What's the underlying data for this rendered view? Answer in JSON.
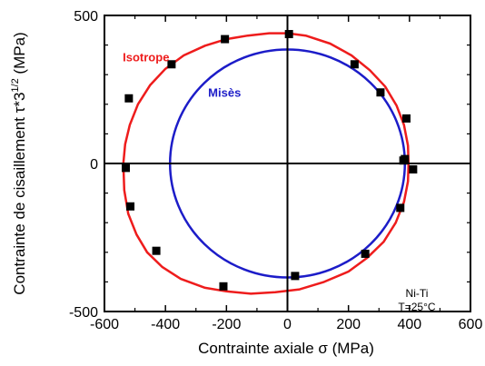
{
  "chart_data": {
    "type": "scatter",
    "title": "",
    "xlabel": "Contrainte axiale σ (MPa)",
    "ylabel_main": "Contrainte de cisaillement τ*3",
    "ylabel_sup": "1/2",
    "ylabel_unit": " (MPa)",
    "xlim": [
      -600,
      600
    ],
    "ylim": [
      -500,
      500
    ],
    "x_ticks": [
      -600,
      -400,
      -200,
      0,
      200,
      400,
      600
    ],
    "x_tick_labels": [
      "-600",
      "-400",
      "-200",
      "0",
      "200",
      "400",
      "600"
    ],
    "y_ticks": [
      -500,
      0,
      500
    ],
    "y_tick_labels": [
      "-500",
      "0",
      "500"
    ],
    "grid": false,
    "annotation_lines": [
      "Ni-Ti",
      "T=25°C"
    ],
    "series": [
      {
        "name": "Isotrope",
        "kind": "curve",
        "color": "#ee1c1c",
        "points": [
          [
            -538,
            0
          ],
          [
            -535,
            -90
          ],
          [
            -522,
            -170
          ],
          [
            -495,
            -240
          ],
          [
            -460,
            -300
          ],
          [
            -410,
            -350
          ],
          [
            -350,
            -390
          ],
          [
            -270,
            -420
          ],
          [
            -200,
            -432
          ],
          [
            -120,
            -440
          ],
          [
            -40,
            -435
          ],
          [
            40,
            -425
          ],
          [
            120,
            -400
          ],
          [
            200,
            -365
          ],
          [
            260,
            -320
          ],
          [
            315,
            -265
          ],
          [
            355,
            -200
          ],
          [
            382,
            -130
          ],
          [
            395,
            -60
          ],
          [
            397,
            0
          ],
          [
            395,
            60
          ],
          [
            382,
            130
          ],
          [
            358,
            195
          ],
          [
            320,
            260
          ],
          [
            270,
            315
          ],
          [
            210,
            365
          ],
          [
            140,
            405
          ],
          [
            60,
            432
          ],
          [
            0,
            440
          ],
          [
            -60,
            440
          ],
          [
            -130,
            432
          ],
          [
            -200,
            420
          ],
          [
            -270,
            398
          ],
          [
            -340,
            365
          ],
          [
            -400,
            320
          ],
          [
            -450,
            265
          ],
          [
            -490,
            200
          ],
          [
            -517,
            130
          ],
          [
            -532,
            65
          ],
          [
            -538,
            0
          ]
        ]
      },
      {
        "name": "Misès",
        "kind": "circle",
        "color": "#1c1cc8",
        "center": [
          0,
          0
        ],
        "radius": 385
      },
      {
        "name": "",
        "kind": "markers",
        "color": "#000000",
        "points": [
          [
            -520,
            220
          ],
          [
            -380,
            335
          ],
          [
            -205,
            420
          ],
          [
            5,
            437
          ],
          [
            220,
            335
          ],
          [
            305,
            240
          ],
          [
            390,
            152
          ],
          [
            380,
            10
          ],
          [
            412,
            -20
          ],
          [
            385,
            15
          ],
          [
            370,
            -150
          ],
          [
            255,
            -305
          ],
          [
            25,
            -380
          ],
          [
            -210,
            -415
          ],
          [
            -430,
            -295
          ],
          [
            -515,
            -145
          ],
          [
            -530,
            -15
          ]
        ]
      }
    ],
    "series_labels": [
      {
        "text": "Isotrope",
        "color": "#ee1c1c",
        "x": -540,
        "y": 345
      },
      {
        "text": "Misès",
        "color": "#1c1cc8",
        "x": -260,
        "y": 225
      }
    ]
  }
}
